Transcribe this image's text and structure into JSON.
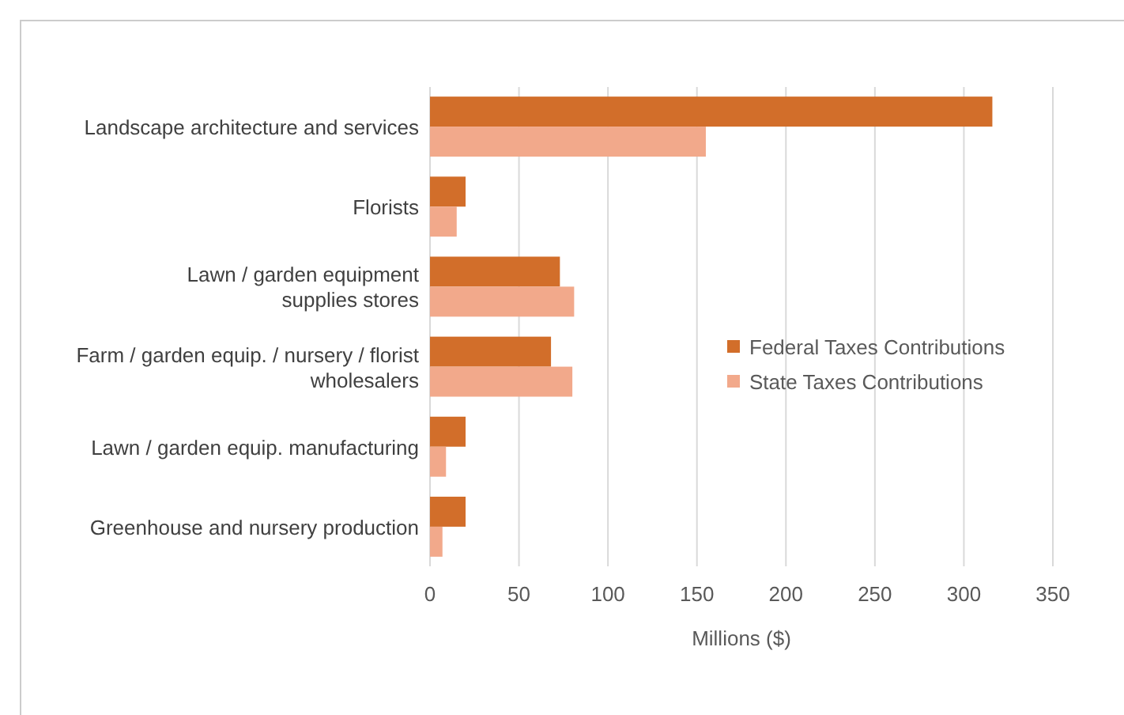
{
  "chart_data": {
    "type": "bar",
    "orientation": "horizontal",
    "xlabel": "Millions ($)",
    "categories": [
      "Landscape architecture and services",
      "Florists",
      "Lawn / garden equipment\nsupplies stores",
      "Farm / garden equip. / nursery / florist\nwholesalers",
      "Lawn / garden equip. manufacturing",
      "Greenhouse and nursery production"
    ],
    "series": [
      {
        "name": "Federal Taxes Contributions",
        "color": "#d26e2a",
        "values": [
          316,
          20,
          73,
          68,
          20,
          20
        ]
      },
      {
        "name": "State Taxes Contributions",
        "color": "#f2a98b",
        "values": [
          155,
          15,
          81,
          80,
          9,
          7
        ]
      }
    ],
    "xlim": [
      0,
      350
    ],
    "xticks": [
      0,
      50,
      100,
      150,
      200,
      250,
      300,
      350
    ],
    "grid": "x",
    "legend": "right"
  }
}
